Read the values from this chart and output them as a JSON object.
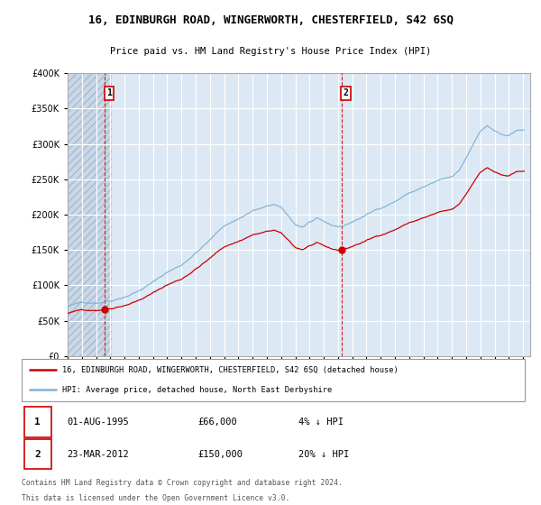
{
  "title": "16, EDINBURGH ROAD, WINGERWORTH, CHESTERFIELD, S42 6SQ",
  "subtitle": "Price paid vs. HM Land Registry's House Price Index (HPI)",
  "legend_line1": "16, EDINBURGH ROAD, WINGERWORTH, CHESTERFIELD, S42 6SQ (detached house)",
  "legend_line2": "HPI: Average price, detached house, North East Derbyshire",
  "footer1": "Contains HM Land Registry data © Crown copyright and database right 2024.",
  "footer2": "This data is licensed under the Open Government Licence v3.0.",
  "annotation1": {
    "num": "1",
    "date": "01-AUG-1995",
    "price": "£66,000",
    "pct": "4% ↓ HPI"
  },
  "annotation2": {
    "num": "2",
    "date": "23-MAR-2012",
    "price": "£150,000",
    "pct": "20% ↓ HPI"
  },
  "sale1_year": 1995.583,
  "sale1_price": 66000,
  "sale2_year": 2012.23,
  "sale2_price": 150000,
  "ylim": [
    0,
    400000
  ],
  "xlim": [
    1993.0,
    2025.5
  ],
  "red_line_color": "#cc0000",
  "blue_line_color": "#7fb3d3",
  "plot_bg_color": "#dce9f5",
  "grid_color": "#ffffff",
  "yticks": [
    0,
    50000,
    100000,
    150000,
    200000,
    250000,
    300000,
    350000,
    400000
  ],
  "ytick_labels": [
    "£0",
    "£50K",
    "£100K",
    "£150K",
    "£200K",
    "£250K",
    "£300K",
    "£350K",
    "£400K"
  ],
  "xticks": [
    1993,
    1994,
    1995,
    1996,
    1997,
    1998,
    1999,
    2000,
    2001,
    2002,
    2003,
    2004,
    2005,
    2006,
    2007,
    2008,
    2009,
    2010,
    2011,
    2012,
    2013,
    2014,
    2015,
    2016,
    2017,
    2018,
    2019,
    2020,
    2021,
    2022,
    2023,
    2024,
    2025
  ],
  "hatch_left_color": "#c8d8e8"
}
